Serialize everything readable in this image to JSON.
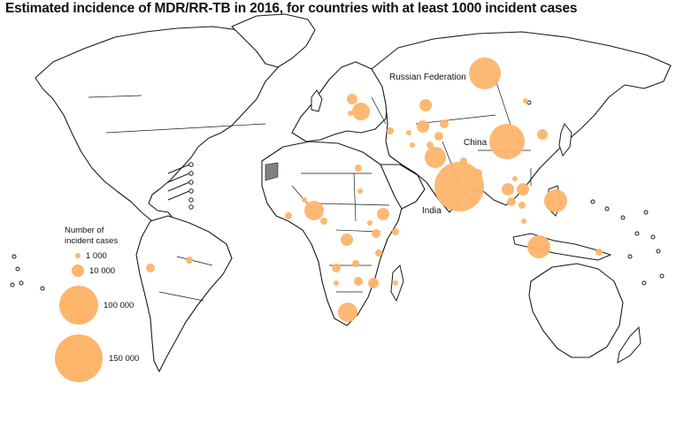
{
  "title": "Estimated incidence of MDR/RR-TB in 2016, for countries with at least 1000 incident cases",
  "colors": {
    "bubble": "#fdb56c",
    "land": "#ffffff",
    "border": "#1a1a1a",
    "not_applicable": "#808080"
  },
  "labels": {
    "russia": "Russian Federation",
    "china": "China",
    "india": "India"
  },
  "legend": {
    "title_line1": "Number of",
    "title_line2": "incident cases",
    "items": [
      {
        "label": "1 000",
        "value": 1000
      },
      {
        "label": "10 000",
        "value": 10000
      },
      {
        "label": "100 000",
        "value": 100000
      },
      {
        "label": "150 000",
        "value": 150000
      }
    ]
  }
}
